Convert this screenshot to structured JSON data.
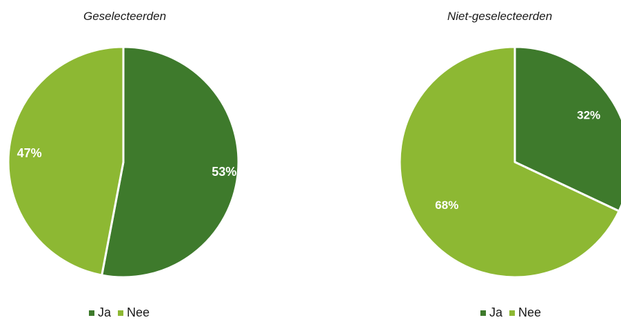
{
  "colors": {
    "ja": "#3e7a2c",
    "nee": "#8db833",
    "separator": "#ffffff"
  },
  "chart_data": [
    {
      "type": "pie",
      "title": "Geselecteerden",
      "legend_position": "bottom",
      "categories": [
        "Ja",
        "Nee"
      ],
      "values": [
        53,
        47
      ],
      "value_labels": [
        "53%",
        "47%"
      ]
    },
    {
      "type": "pie",
      "title": "Niet-geselecteerden",
      "legend_position": "bottom",
      "categories": [
        "Ja",
        "Nee"
      ],
      "values": [
        32,
        68
      ],
      "value_labels": [
        "32%",
        "68%"
      ]
    }
  ]
}
